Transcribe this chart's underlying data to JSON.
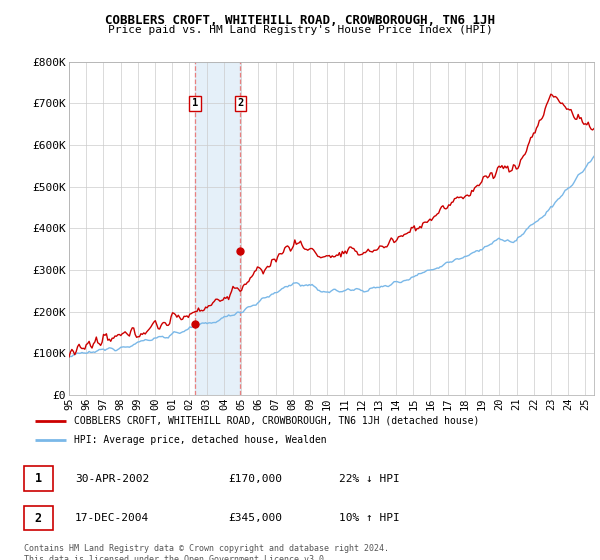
{
  "title": "COBBLERS CROFT, WHITEHILL ROAD, CROWBOROUGH, TN6 1JH",
  "subtitle": "Price paid vs. HM Land Registry's House Price Index (HPI)",
  "ylabel_ticks": [
    "£0",
    "£100K",
    "£200K",
    "£300K",
    "£400K",
    "£500K",
    "£600K",
    "£700K",
    "£800K"
  ],
  "ytick_values": [
    0,
    100000,
    200000,
    300000,
    400000,
    500000,
    600000,
    700000,
    800000
  ],
  "ylim": [
    0,
    800000
  ],
  "sale1_date": 2002.33,
  "sale1_price": 170000,
  "sale2_date": 2004.96,
  "sale2_price": 345000,
  "hpi_color": "#7ab8e8",
  "price_color": "#cc0000",
  "shade_color": "#daeaf7",
  "vline_color": "#e88080",
  "legend_line1": "COBBLERS CROFT, WHITEHILL ROAD, CROWBOROUGH, TN6 1JH (detached house)",
  "legend_line2": "HPI: Average price, detached house, Wealden",
  "table_row1": [
    "1",
    "30-APR-2002",
    "£170,000",
    "22% ↓ HPI"
  ],
  "table_row2": [
    "2",
    "17-DEC-2004",
    "£345,000",
    "10% ↑ HPI"
  ],
  "footer": "Contains HM Land Registry data © Crown copyright and database right 2024.\nThis data is licensed under the Open Government Licence v3.0.",
  "x_start": 1995.0,
  "x_end": 2025.5,
  "x_ticks": [
    1995,
    1996,
    1997,
    1998,
    1999,
    2000,
    2001,
    2002,
    2003,
    2004,
    2005,
    2006,
    2007,
    2008,
    2009,
    2010,
    2011,
    2012,
    2013,
    2014,
    2015,
    2016,
    2017,
    2018,
    2019,
    2020,
    2021,
    2022,
    2023,
    2024,
    2025
  ],
  "x_tick_labels": [
    "95",
    "96",
    "97",
    "98",
    "99",
    "00",
    "01",
    "02",
    "03",
    "04",
    "05",
    "06",
    "07",
    "08",
    "09",
    "10",
    "11",
    "12",
    "13",
    "14",
    "15",
    "16",
    "17",
    "18",
    "19",
    "20",
    "21",
    "22",
    "23",
    "24",
    "25"
  ]
}
